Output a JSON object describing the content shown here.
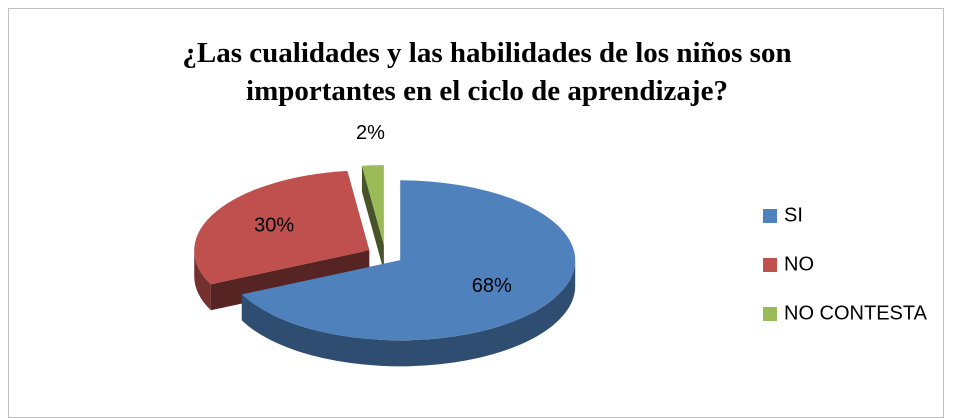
{
  "chart_data": {
    "type": "pie",
    "title": "¿Las cualidades y las habilidades de los niños son importantes en el ciclo de aprendizaje?",
    "categories": [
      "SI",
      "NO",
      "NO CONTESTA"
    ],
    "values": [
      68,
      30,
      2
    ],
    "value_labels": [
      "68%",
      "30%",
      "2%"
    ],
    "colors": [
      "#4f81bd",
      "#c0504d",
      "#9bbb59"
    ],
    "legend": "right"
  }
}
